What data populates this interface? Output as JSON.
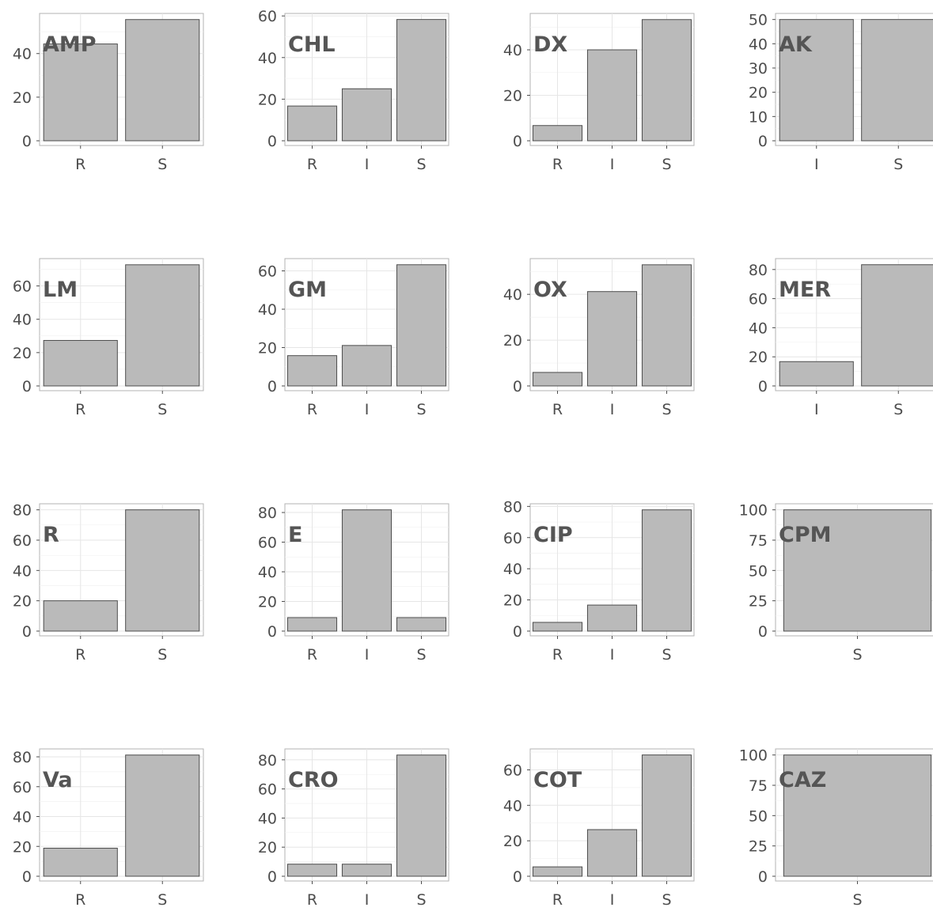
{
  "chart_data": [
    {
      "type": "bar",
      "title": "AMP",
      "categories": [
        "R",
        "S"
      ],
      "values": [
        44.4,
        55.6
      ],
      "ylim": [
        0,
        58.4
      ],
      "yticks": [
        0,
        20,
        40
      ]
    },
    {
      "type": "bar",
      "title": "CHL",
      "categories": [
        "R",
        "I",
        "S"
      ],
      "values": [
        16.7,
        25.0,
        58.3
      ],
      "ylim": [
        0,
        61.2
      ],
      "yticks": [
        0,
        20,
        40,
        60
      ]
    },
    {
      "type": "bar",
      "title": "DX",
      "categories": [
        "R",
        "I",
        "S"
      ],
      "values": [
        6.7,
        40.0,
        53.3
      ],
      "ylim": [
        0,
        56.0
      ],
      "yticks": [
        0,
        20,
        40
      ]
    },
    {
      "type": "bar",
      "title": "AK",
      "categories": [
        "I",
        "S"
      ],
      "values": [
        50.0,
        50.0
      ],
      "ylim": [
        0,
        52.5
      ],
      "yticks": [
        0,
        10,
        20,
        30,
        40,
        50
      ]
    },
    {
      "type": "bar",
      "title": "LM",
      "categories": [
        "R",
        "S"
      ],
      "values": [
        27.3,
        72.7
      ],
      "ylim": [
        0,
        76.4
      ],
      "yticks": [
        0,
        20,
        40,
        60
      ]
    },
    {
      "type": "bar",
      "title": "GM",
      "categories": [
        "R",
        "I",
        "S"
      ],
      "values": [
        15.8,
        21.1,
        63.2
      ],
      "ylim": [
        0,
        66.4
      ],
      "yticks": [
        0,
        20,
        40,
        60
      ]
    },
    {
      "type": "bar",
      "title": "OX",
      "categories": [
        "R",
        "I",
        "S"
      ],
      "values": [
        5.9,
        41.2,
        52.9
      ],
      "ylim": [
        0,
        55.6
      ],
      "yticks": [
        0,
        20,
        40
      ]
    },
    {
      "type": "bar",
      "title": "MER",
      "categories": [
        "I",
        "S"
      ],
      "values": [
        16.7,
        83.3
      ],
      "ylim": [
        0,
        87.5
      ],
      "yticks": [
        0,
        20,
        40,
        60,
        80
      ]
    },
    {
      "type": "bar",
      "title": "R",
      "categories": [
        "R",
        "S"
      ],
      "values": [
        20.0,
        80.0
      ],
      "ylim": [
        0,
        84.0
      ],
      "yticks": [
        0,
        20,
        40,
        60,
        80
      ]
    },
    {
      "type": "bar",
      "title": "E",
      "categories": [
        "R",
        "I",
        "S"
      ],
      "values": [
        9.1,
        81.8,
        9.1
      ],
      "ylim": [
        0,
        85.9
      ],
      "yticks": [
        0,
        20,
        40,
        60,
        80
      ]
    },
    {
      "type": "bar",
      "title": "CIP",
      "categories": [
        "R",
        "I",
        "S"
      ],
      "values": [
        5.6,
        16.7,
        77.8
      ],
      "ylim": [
        0,
        81.7
      ],
      "yticks": [
        0,
        20,
        40,
        60,
        80
      ]
    },
    {
      "type": "bar",
      "title": "CPM",
      "categories": [
        "S"
      ],
      "values": [
        100
      ],
      "ylim": [
        0,
        105
      ],
      "yticks": [
        0,
        25,
        50,
        75,
        100
      ]
    },
    {
      "type": "bar",
      "title": "Va",
      "categories": [
        "R",
        "S"
      ],
      "values": [
        18.8,
        81.2
      ],
      "ylim": [
        0,
        85.3
      ],
      "yticks": [
        0,
        20,
        40,
        60,
        80
      ]
    },
    {
      "type": "bar",
      "title": "CRO",
      "categories": [
        "R",
        "I",
        "S"
      ],
      "values": [
        8.3,
        8.3,
        83.3
      ],
      "ylim": [
        0,
        87.5
      ],
      "yticks": [
        0,
        20,
        40,
        60,
        80
      ]
    },
    {
      "type": "bar",
      "title": "COT",
      "categories": [
        "R",
        "I",
        "S"
      ],
      "values": [
        5.3,
        26.3,
        68.4
      ],
      "ylim": [
        0,
        71.8
      ],
      "yticks": [
        0,
        20,
        40,
        60
      ]
    },
    {
      "type": "bar",
      "title": "CAZ",
      "categories": [
        "S"
      ],
      "values": [
        100
      ],
      "ylim": [
        0,
        105
      ],
      "yticks": [
        0,
        25,
        50,
        75,
        100
      ]
    }
  ]
}
